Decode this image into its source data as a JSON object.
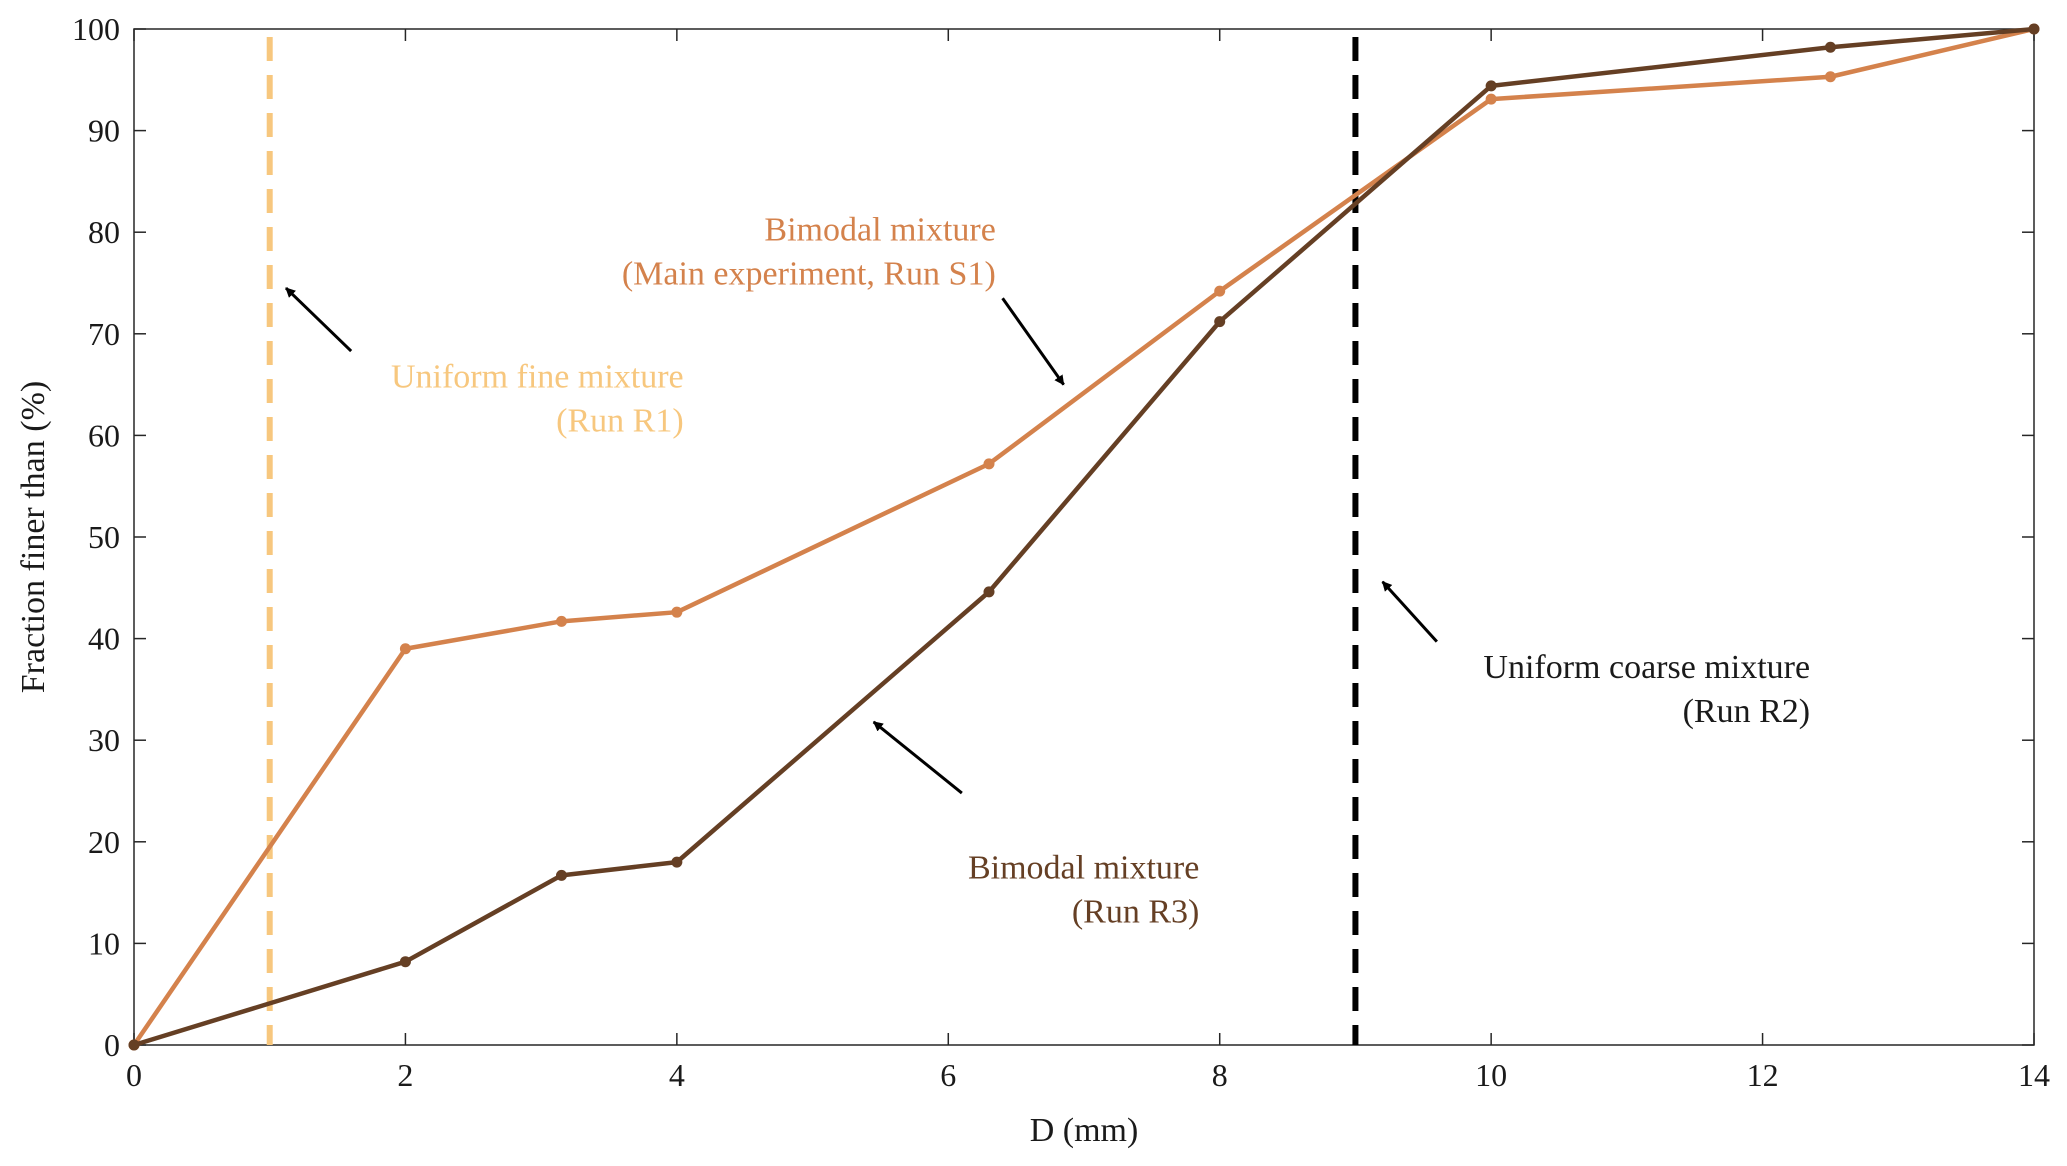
{
  "chart_data": {
    "type": "line",
    "xlabel": "D (mm)",
    "ylabel": "Fraction finer than (%)",
    "xlim": [
      0,
      14
    ],
    "ylim": [
      0,
      100
    ],
    "xticks": [
      0,
      2,
      4,
      6,
      8,
      10,
      12,
      14
    ],
    "yticks": [
      0,
      10,
      20,
      30,
      40,
      50,
      60,
      70,
      80,
      90,
      100
    ],
    "grid": false,
    "series": [
      {
        "name": "Bimodal mixture (Main experiment, Run S1)",
        "color": "#d4824c",
        "x": [
          0,
          2,
          3.15,
          4,
          6.3,
          8,
          10,
          12.5,
          14
        ],
        "y": [
          0,
          39,
          41.7,
          42.6,
          57.2,
          74.2,
          93.1,
          95.3,
          100
        ]
      },
      {
        "name": "Bimodal mixture (Run R3)",
        "color": "#653f24",
        "x": [
          0,
          2,
          3.15,
          4,
          6.3,
          8,
          10,
          12.5,
          14
        ],
        "y": [
          0,
          8.2,
          16.7,
          18,
          44.6,
          71.2,
          94.4,
          98.2,
          100
        ]
      }
    ],
    "vlines": [
      {
        "name": "Uniform fine mixture (Run R1)",
        "x": 1,
        "color": "#f7c77e"
      },
      {
        "name": "Uniform coarse mixture (Run R2)",
        "x": 9,
        "color": "#000000"
      }
    ],
    "annotations": [
      {
        "id": "s1",
        "lines": [
          "Bimodal mixture",
          "(Main experiment, Run S1)"
        ],
        "color": "#d4824c",
        "text_at": [
          6.35,
          79.2
        ],
        "arrow_from": [
          6.4,
          73.5
        ],
        "arrow_to": [
          6.85,
          65
        ]
      },
      {
        "id": "r1",
        "lines": [
          "Uniform fine mixture",
          "(Run R1)"
        ],
        "color": "#f7c77e",
        "text_at": [
          4.05,
          64.7
        ],
        "arrow_from": [
          1.6,
          68.3
        ],
        "arrow_to": [
          1.12,
          74.5
        ]
      },
      {
        "id": "r2",
        "lines": [
          "Uniform coarse mixture",
          "(Run R2)"
        ],
        "color": "#1a1a1a",
        "text_at": [
          12.35,
          36.1
        ],
        "arrow_from": [
          9.6,
          39.7
        ],
        "arrow_to": [
          9.2,
          45.6
        ]
      },
      {
        "id": "r3",
        "lines": [
          "Bimodal mixture",
          "(Run R3)"
        ],
        "color": "#653f24",
        "text_at": [
          7.85,
          16.4
        ],
        "arrow_from": [
          6.1,
          24.8
        ],
        "arrow_to": [
          5.45,
          31.8
        ]
      }
    ]
  }
}
